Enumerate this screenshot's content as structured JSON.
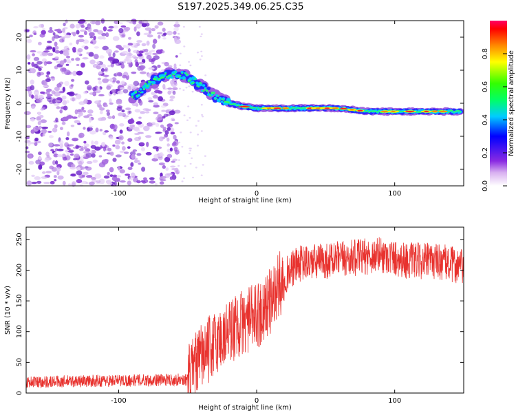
{
  "title": "S197.2025.349.06.25.C35",
  "chart_data": [
    {
      "type": "heatmap",
      "name": "spectrogram",
      "xlabel": "Height of straight line (km)",
      "ylabel": "Frequency (Hz)",
      "xlim": [
        -167,
        150
      ],
      "ylim": [
        -25,
        25
      ],
      "x_ticks": [
        -100,
        0,
        100
      ],
      "y_ticks": [
        -20,
        -10,
        0,
        10,
        20
      ],
      "colorbar": {
        "label": "Normalized spectral amplitude",
        "range": [
          0,
          1
        ],
        "ticks": [
          0.0,
          0.2,
          0.4,
          0.6,
          0.8
        ]
      },
      "signal_track": {
        "x": [
          -90,
          -80,
          -70,
          -60,
          -50,
          -40,
          -30,
          -20,
          -10,
          0,
          20,
          40,
          60,
          80,
          100,
          120,
          148
        ],
        "freq": [
          2,
          5,
          8,
          9,
          8,
          5,
          2,
          0,
          -1,
          -1.5,
          -1.5,
          -1.5,
          -1.5,
          -2.5,
          -2.5,
          -2.5,
          -2.5
        ]
      }
    },
    {
      "type": "line",
      "name": "snr",
      "xlabel": "Height of straight line (km)",
      "ylabel": "SNR (10 * v/v)",
      "xlim": [
        -167,
        150
      ],
      "ylim": [
        0,
        270
      ],
      "x_ticks": [
        -100,
        0,
        100
      ],
      "y_ticks": [
        0,
        50,
        100,
        150,
        200,
        250
      ],
      "color": "#e8322e",
      "profile": {
        "x": [
          -167,
          -50,
          -45,
          -40,
          -30,
          -20,
          -10,
          0,
          10,
          20,
          30,
          50,
          70,
          90,
          110,
          130,
          150
        ],
        "y": [
          18,
          22,
          40,
          60,
          80,
          100,
          115,
          125,
          150,
          190,
          210,
          215,
          220,
          225,
          215,
          215,
          205
        ]
      }
    }
  ]
}
